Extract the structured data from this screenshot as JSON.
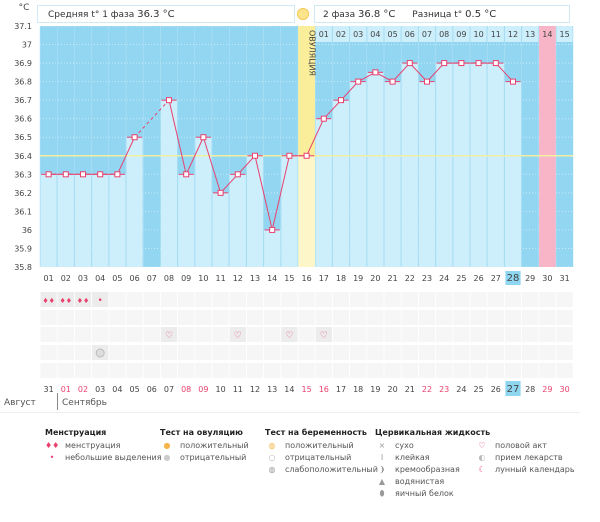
{
  "header": {
    "unit": "°C",
    "phase1_label": "Средняя t° 1 фаза",
    "phase1_value": "36.3 °C",
    "phase2_label": "2 фаза",
    "phase2_value": "36.8 °C",
    "diff_label": "Разница t°",
    "diff_value": "0.5 °C",
    "ovulation_label": "ОВУЛЯЦИЯ"
  },
  "colors": {
    "bg": "#93d6f2",
    "bar": "#cdeefb",
    "line": "#e8416e",
    "ovulation": "#fbee9b",
    "ovulation_light": "#fdf6c8",
    "pink": "#f8b5c8",
    "coverline": "#f2f0a0",
    "weekend": "#e8416e",
    "highlight": "#8fd6f0"
  },
  "chart_data": {
    "type": "line",
    "x": [
      "01",
      "02",
      "03",
      "04",
      "05",
      "06",
      "07",
      "08",
      "09",
      "10",
      "11",
      "12",
      "13",
      "14",
      "15",
      "16",
      "17",
      "18",
      "19",
      "20",
      "21",
      "22",
      "23",
      "24",
      "25",
      "26",
      "27",
      "28",
      "29",
      "30",
      "31"
    ],
    "values": [
      36.3,
      36.3,
      36.3,
      36.3,
      36.3,
      36.5,
      null,
      36.7,
      36.3,
      36.5,
      36.2,
      36.3,
      36.4,
      36.0,
      36.4,
      36.4,
      36.6,
      36.7,
      36.8,
      36.85,
      36.8,
      36.9,
      36.8,
      36.9,
      36.9,
      36.9,
      36.9,
      36.8,
      null,
      null,
      null
    ],
    "ylim": [
      35.8,
      37.1
    ],
    "yticks": [
      "37.1",
      "37",
      "36.9",
      "36.8",
      "36.7",
      "36.6",
      "36.5",
      "36.4",
      "36.3",
      "36.2",
      "36.1",
      "36",
      "35.9",
      "35.8"
    ],
    "coverline": 36.4,
    "ovulation_day": 16,
    "highlight_day": 28,
    "next_cycle_labels": [
      "01",
      "02",
      "03",
      "04",
      "05",
      "06",
      "07",
      "08",
      "09",
      "10",
      "11",
      "12",
      "13",
      "14",
      "15"
    ],
    "next_cycle_start_day": 17,
    "pink_day": 30
  },
  "calendar": {
    "dates": [
      "31",
      "01",
      "02",
      "03",
      "04",
      "05",
      "06",
      "07",
      "08",
      "09",
      "10",
      "11",
      "12",
      "13",
      "14",
      "15",
      "16",
      "17",
      "18",
      "19",
      "20",
      "21",
      "22",
      "23",
      "24",
      "25",
      "26",
      "27",
      "28",
      "29",
      "30"
    ],
    "weekend_idx": [
      1,
      2,
      8,
      9,
      15,
      16,
      22,
      23,
      29,
      30
    ],
    "today_idx": 27,
    "month_prev": "Август",
    "month_cur": "Сентябрь",
    "menstruation": [
      {
        "day": 1,
        "type": "menstruation"
      },
      {
        "day": 2,
        "type": "menstruation"
      },
      {
        "day": 3,
        "type": "menstruation"
      },
      {
        "day": 4,
        "type": "spotting"
      }
    ],
    "intercourse_days": [
      8,
      12,
      15,
      17
    ],
    "medication_days": [
      4
    ]
  },
  "legend": {
    "groups": [
      {
        "title": "Менструация",
        "items": [
          {
            "icon": "menstruation-drops-icon",
            "label": "менструация"
          },
          {
            "icon": "spotting-drop-icon",
            "label": "небольшие выделения"
          }
        ]
      },
      {
        "title": "Тест на овуляцию",
        "items": [
          {
            "icon": "ovulation-positive-icon",
            "label": "положительный"
          },
          {
            "icon": "ovulation-negative-icon",
            "label": "отрицательный"
          }
        ]
      },
      {
        "title": "Тест на беременность",
        "items": [
          {
            "icon": "pregnancy-positive-icon",
            "label": "положительный"
          },
          {
            "icon": "pregnancy-negative-icon",
            "label": "отрицательный"
          },
          {
            "icon": "pregnancy-weak-icon",
            "label": "слабоположительный"
          }
        ]
      },
      {
        "title": "Цервикальная жидкость",
        "items": [
          {
            "icon": "dry-icon",
            "label": "сухо"
          },
          {
            "icon": "sticky-icon",
            "label": "клейкая"
          },
          {
            "icon": "creamy-icon",
            "label": "кремообразная"
          },
          {
            "icon": "watery-icon",
            "label": "водянистая"
          },
          {
            "icon": "egg-white-icon",
            "label": "яичный белок"
          }
        ]
      },
      {
        "title": "",
        "items": [
          {
            "icon": "heart-icon",
            "label": "половой акт"
          },
          {
            "icon": "pill-icon",
            "label": "прием лекарств"
          },
          {
            "icon": "moon-icon",
            "label": "лунный календарь"
          }
        ]
      }
    ]
  }
}
